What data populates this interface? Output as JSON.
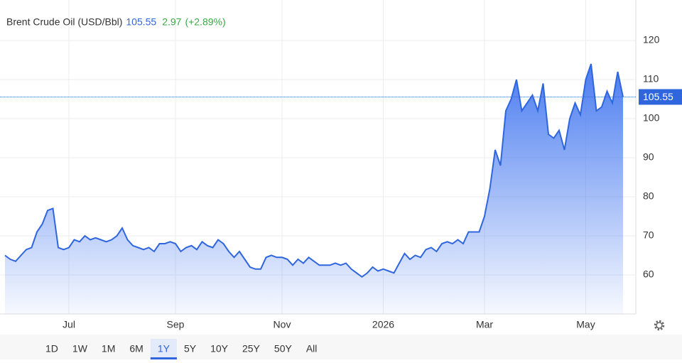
{
  "chart_data": {
    "type": "area",
    "title": "Brent Crude Oil (USD/Bbl)",
    "change": "2.97",
    "change_pct": "(+2.89%)",
    "color": "#2f66dd",
    "change_color": "#3aa845",
    "grid": true,
    "ylim": [
      50,
      130
    ],
    "yticks": [
      60,
      70,
      80,
      90,
      100,
      110,
      120
    ],
    "categories": [
      null,
      null,
      null,
      null,
      null,
      null,
      null,
      null,
      null,
      null,
      null,
      null,
      "Jul",
      null,
      null,
      null,
      null,
      null,
      null,
      null,
      null,
      null,
      null,
      null,
      null,
      null,
      null,
      null,
      null,
      null,
      null,
      null,
      "Sep",
      null,
      null,
      null,
      null,
      null,
      null,
      null,
      null,
      null,
      null,
      null,
      null,
      null,
      null,
      null,
      null,
      null,
      null,
      null,
      "Nov",
      null,
      null,
      null,
      null,
      null,
      null,
      null,
      null,
      null,
      null,
      null,
      null,
      null,
      null,
      null,
      null,
      null,
      null,
      "2026",
      null,
      null,
      null,
      null,
      null,
      null,
      null,
      null,
      null,
      null,
      null,
      null,
      null,
      null,
      null,
      null,
      null,
      null,
      "Mar",
      null,
      null,
      null,
      null,
      null,
      null,
      null,
      null,
      null,
      null,
      null,
      null,
      null,
      null,
      null,
      null,
      null,
      null,
      "May",
      null,
      null,
      null,
      null,
      null,
      null,
      null
    ],
    "values": [
      65,
      64,
      63.5,
      65,
      66.5,
      67,
      71,
      73,
      76.5,
      77,
      67,
      66.5,
      67,
      69,
      68.5,
      70,
      69,
      69.5,
      69,
      68.5,
      69,
      70,
      72,
      69,
      67.5,
      67,
      66.5,
      67,
      66,
      68,
      68,
      68.5,
      68,
      66,
      67,
      67.5,
      66.5,
      68.5,
      67.5,
      67,
      69,
      68,
      66,
      64.5,
      66,
      64,
      62,
      61.5,
      61.5,
      64.5,
      65,
      64.5,
      64.5,
      64,
      62.5,
      64,
      63,
      64.5,
      63.5,
      62.5,
      62.5,
      62.5,
      63,
      62.5,
      63,
      61.5,
      60.5,
      59.5,
      60.5,
      62,
      61,
      61.5,
      61,
      60.5,
      63,
      65.5,
      64,
      65,
      64.5,
      66.5,
      67,
      66,
      68,
      68.5,
      68,
      69,
      68,
      71,
      71,
      71,
      75,
      82,
      92,
      88,
      102,
      105,
      110,
      102,
      104,
      106,
      102,
      109,
      96,
      95,
      97,
      92,
      100,
      104,
      101,
      110,
      114,
      102,
      103,
      107,
      104,
      112,
      105.55
    ],
    "range_buttons": [
      "1D",
      "1W",
      "1M",
      "6M",
      "1Y",
      "5Y",
      "10Y",
      "25Y",
      "50Y",
      "All"
    ],
    "selected_range_index": 4
  }
}
